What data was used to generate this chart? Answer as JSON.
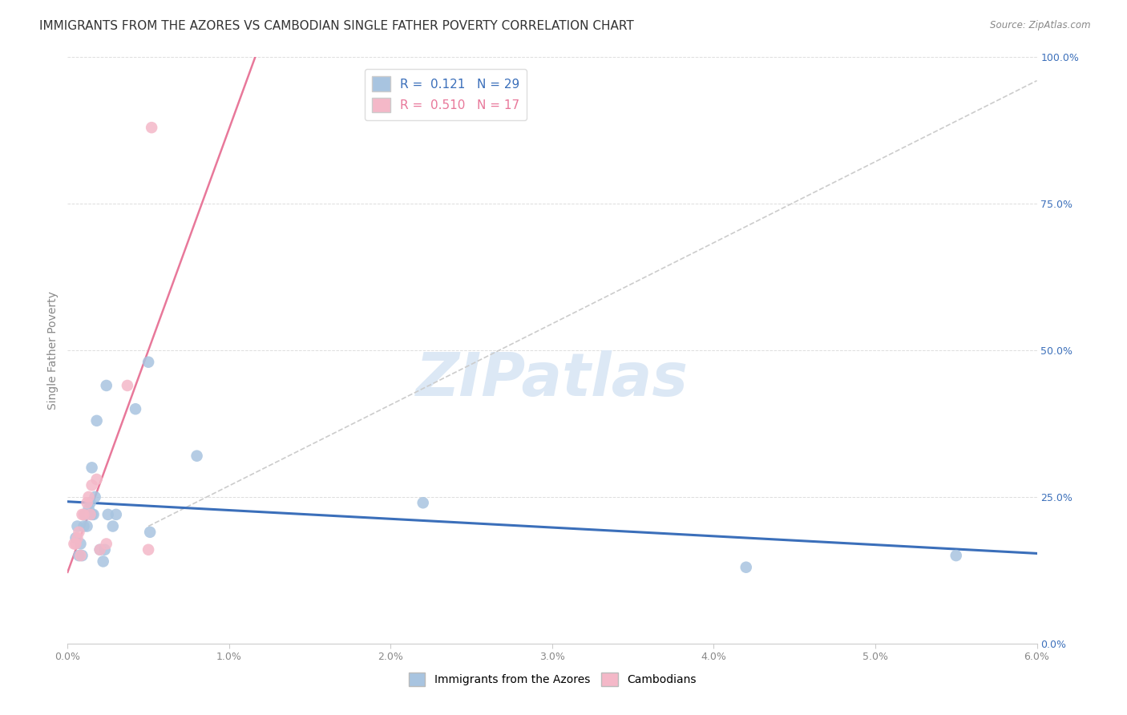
{
  "title": "IMMIGRANTS FROM THE AZORES VS CAMBODIAN SINGLE FATHER POVERTY CORRELATION CHART",
  "source": "Source: ZipAtlas.com",
  "ylabel": "Single Father Poverty",
  "legend_blue_R": "0.121",
  "legend_blue_N": "29",
  "legend_pink_R": "0.510",
  "legend_pink_N": "17",
  "legend_blue_label": "Immigrants from the Azores",
  "legend_pink_label": "Cambodians",
  "xlim": [
    0.0,
    6.0
  ],
  "ylim": [
    0.0,
    100.0
  ],
  "right_yticks": [
    0.0,
    25.0,
    50.0,
    75.0,
    100.0
  ],
  "blue_color": "#a8c4e0",
  "blue_line_color": "#3b6fba",
  "pink_color": "#f4b8c8",
  "pink_line_color": "#e8789a",
  "gray_dash_color": "#cccccc",
  "background_color": "#ffffff",
  "blue_points": [
    [
      0.05,
      18.0
    ],
    [
      0.06,
      20.0
    ],
    [
      0.07,
      15.0
    ],
    [
      0.08,
      17.0
    ],
    [
      0.09,
      15.0
    ],
    [
      0.1,
      20.0
    ],
    [
      0.11,
      22.0
    ],
    [
      0.12,
      20.0
    ],
    [
      0.13,
      23.0
    ],
    [
      0.14,
      24.0
    ],
    [
      0.15,
      30.0
    ],
    [
      0.15,
      22.0
    ],
    [
      0.16,
      22.0
    ],
    [
      0.17,
      25.0
    ],
    [
      0.18,
      38.0
    ],
    [
      0.2,
      16.0
    ],
    [
      0.22,
      14.0
    ],
    [
      0.23,
      16.0
    ],
    [
      0.24,
      44.0
    ],
    [
      0.25,
      22.0
    ],
    [
      0.28,
      20.0
    ],
    [
      0.3,
      22.0
    ],
    [
      0.42,
      40.0
    ],
    [
      0.5,
      48.0
    ],
    [
      0.51,
      19.0
    ],
    [
      0.8,
      32.0
    ],
    [
      2.2,
      24.0
    ],
    [
      4.2,
      13.0
    ],
    [
      5.5,
      15.0
    ]
  ],
  "pink_points": [
    [
      0.04,
      17.0
    ],
    [
      0.05,
      17.0
    ],
    [
      0.06,
      18.0
    ],
    [
      0.07,
      19.0
    ],
    [
      0.08,
      15.0
    ],
    [
      0.09,
      22.0
    ],
    [
      0.1,
      22.0
    ],
    [
      0.12,
      24.0
    ],
    [
      0.13,
      25.0
    ],
    [
      0.14,
      22.0
    ],
    [
      0.15,
      27.0
    ],
    [
      0.18,
      28.0
    ],
    [
      0.2,
      16.0
    ],
    [
      0.24,
      17.0
    ],
    [
      0.37,
      44.0
    ],
    [
      0.5,
      16.0
    ],
    [
      0.52,
      88.0
    ]
  ],
  "watermark_text": "ZIPatlas",
  "watermark_color": "#dce8f5",
  "title_fontsize": 11,
  "axis_label_fontsize": 10,
  "tick_fontsize": 9,
  "dot_size": 110
}
